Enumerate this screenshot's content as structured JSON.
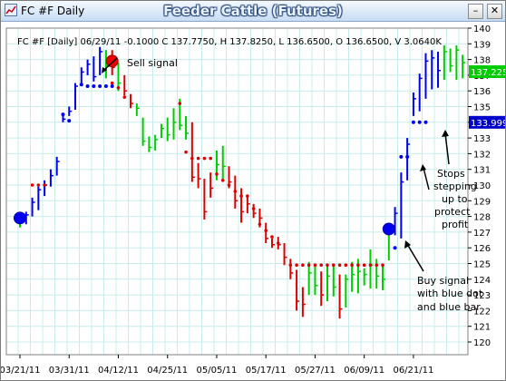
{
  "window": {
    "title": "FC #F Daily",
    "icon": "chart-app-icon",
    "minimize_label": "–",
    "close_label": "✕"
  },
  "chart_data": {
    "type": "ohlc",
    "title": "Feeder Cattle (Futures)",
    "header": "FC #F [Daily] 06/29/11  -0.1000 C 137.7750, H 137.8250, L 136.6500, O 136.6500, V 3.0640K",
    "ylim": [
      120,
      140
    ],
    "y_ticks": [
      120,
      121,
      122,
      123,
      124,
      125,
      126,
      127,
      128,
      129,
      130,
      131,
      132,
      133,
      134,
      135,
      136,
      137,
      138,
      139,
      140
    ],
    "x_tick_labels": [
      "03/21/11",
      "03/31/11",
      "04/12/11",
      "04/25/11",
      "05/05/11",
      "05/17/11",
      "05/27/11",
      "06/09/11",
      "06/21/11"
    ],
    "x_tick_bar_index": [
      0,
      8,
      16,
      24,
      32,
      40,
      48,
      56,
      64
    ],
    "grid": true,
    "colors": {
      "up": "#00cc00",
      "down": "#dd0000",
      "neutral": "#0000ee",
      "stop_dot_red": "#dd0000",
      "stop_dot_blue": "#0000ee",
      "price_tag": "#00cc00",
      "stop_tag": "#0000cc",
      "signal_buy": "#0000ee",
      "signal_sell": "#ee0000"
    },
    "bars": [
      {
        "i": 0,
        "h": 127.9,
        "l": 127.3,
        "c": 127.6,
        "col": "g"
      },
      {
        "i": 1,
        "h": 128.3,
        "l": 127.5,
        "c": 128.1,
        "col": "b"
      },
      {
        "i": 2,
        "h": 129.2,
        "l": 128.0,
        "c": 128.9,
        "col": "b"
      },
      {
        "i": 3,
        "h": 129.9,
        "l": 128.4,
        "c": 129.7,
        "col": "b"
      },
      {
        "i": 4,
        "h": 130.3,
        "l": 129.3,
        "c": 130.0,
        "col": "b"
      },
      {
        "i": 5,
        "h": 131.0,
        "l": 129.9,
        "c": 130.6,
        "col": "b"
      },
      {
        "i": 6,
        "h": 131.8,
        "l": 130.6,
        "c": 131.5,
        "col": "b"
      },
      {
        "i": 7,
        "h": 134.4,
        "l": 134.0,
        "c": 134.2,
        "col": "b"
      },
      {
        "i": 8,
        "h": 135.0,
        "l": 134.4,
        "c": 134.7,
        "col": "b"
      },
      {
        "i": 9,
        "h": 136.5,
        "l": 134.8,
        "c": 136.3,
        "col": "b"
      },
      {
        "i": 10,
        "h": 137.5,
        "l": 136.3,
        "c": 137.2,
        "col": "b"
      },
      {
        "i": 11,
        "h": 138.0,
        "l": 137.0,
        "c": 137.7,
        "col": "b"
      },
      {
        "i": 12,
        "h": 138.2,
        "l": 136.6,
        "c": 136.9,
        "col": "b"
      },
      {
        "i": 13,
        "h": 138.8,
        "l": 137.0,
        "c": 138.5,
        "col": "b"
      },
      {
        "i": 14,
        "h": 138.6,
        "l": 136.8,
        "c": 137.6,
        "col": "g"
      },
      {
        "i": 15,
        "h": 138.6,
        "l": 137.0,
        "c": 137.5,
        "col": "r"
      },
      {
        "i": 16,
        "h": 137.8,
        "l": 136.0,
        "c": 136.5,
        "col": "g"
      },
      {
        "i": 17,
        "h": 137.0,
        "l": 135.7,
        "c": 136.0,
        "col": "r"
      },
      {
        "i": 18,
        "h": 135.8,
        "l": 134.9,
        "c": 135.2,
        "col": "r"
      },
      {
        "i": 19,
        "h": 135.2,
        "l": 134.4,
        "c": 134.9,
        "col": "g"
      },
      {
        "i": 20,
        "h": 134.3,
        "l": 132.5,
        "c": 132.8,
        "col": "g"
      },
      {
        "i": 21,
        "h": 133.1,
        "l": 132.1,
        "c": 132.4,
        "col": "g"
      },
      {
        "i": 22,
        "h": 133.2,
        "l": 132.2,
        "c": 132.9,
        "col": "g"
      },
      {
        "i": 23,
        "h": 133.9,
        "l": 133.0,
        "c": 133.6,
        "col": "g"
      },
      {
        "i": 24,
        "h": 134.3,
        "l": 132.8,
        "c": 133.2,
        "col": "g"
      },
      {
        "i": 25,
        "h": 134.9,
        "l": 132.9,
        "c": 134.0,
        "col": "g"
      },
      {
        "i": 26,
        "h": 135.5,
        "l": 133.5,
        "c": 133.8,
        "col": "g"
      },
      {
        "i": 27,
        "h": 134.4,
        "l": 132.9,
        "c": 133.3,
        "col": "g"
      },
      {
        "i": 28,
        "h": 134.0,
        "l": 130.2,
        "c": 130.5,
        "col": "r"
      },
      {
        "i": 29,
        "h": 131.4,
        "l": 129.8,
        "c": 130.4,
        "col": "r"
      },
      {
        "i": 30,
        "h": 130.4,
        "l": 127.8,
        "c": 128.3,
        "col": "r"
      },
      {
        "i": 31,
        "h": 130.8,
        "l": 129.2,
        "c": 129.8,
        "col": "r"
      },
      {
        "i": 32,
        "h": 132.2,
        "l": 130.3,
        "c": 131.3,
        "col": "g"
      },
      {
        "i": 33,
        "h": 132.5,
        "l": 130.4,
        "c": 131.2,
        "col": "g"
      },
      {
        "i": 34,
        "h": 131.2,
        "l": 129.8,
        "c": 130.2,
        "col": "r"
      },
      {
        "i": 35,
        "h": 130.6,
        "l": 128.5,
        "c": 129.0,
        "col": "r"
      },
      {
        "i": 36,
        "h": 129.8,
        "l": 127.6,
        "c": 128.3,
        "col": "r"
      },
      {
        "i": 37,
        "h": 129.3,
        "l": 128.2,
        "c": 128.8,
        "col": "r"
      },
      {
        "i": 38,
        "h": 128.8,
        "l": 127.9,
        "c": 128.2,
        "col": "r"
      },
      {
        "i": 39,
        "h": 128.5,
        "l": 127.3,
        "c": 127.9,
        "col": "r"
      },
      {
        "i": 40,
        "h": 127.6,
        "l": 126.3,
        "c": 126.6,
        "col": "r"
      },
      {
        "i": 41,
        "h": 126.6,
        "l": 126.0,
        "c": 126.2,
        "col": "r"
      },
      {
        "i": 42,
        "h": 126.7,
        "l": 125.9,
        "c": 126.2,
        "col": "r"
      },
      {
        "i": 43,
        "h": 126.3,
        "l": 124.9,
        "c": 125.4,
        "col": "r"
      },
      {
        "i": 44,
        "h": 125.3,
        "l": 124.0,
        "c": 124.4,
        "col": "r"
      },
      {
        "i": 45,
        "h": 124.6,
        "l": 122.0,
        "c": 122.6,
        "col": "r"
      },
      {
        "i": 46,
        "h": 123.5,
        "l": 121.6,
        "c": 122.4,
        "col": "r"
      },
      {
        "i": 47,
        "h": 125.1,
        "l": 123.0,
        "c": 124.4,
        "col": "g"
      },
      {
        "i": 48,
        "h": 124.9,
        "l": 123.0,
        "c": 123.6,
        "col": "g"
      },
      {
        "i": 49,
        "h": 124.5,
        "l": 122.3,
        "c": 123.0,
        "col": "r"
      },
      {
        "i": 50,
        "h": 124.8,
        "l": 122.6,
        "c": 124.2,
        "col": "g"
      },
      {
        "i": 51,
        "h": 124.9,
        "l": 122.9,
        "c": 123.5,
        "col": "g"
      },
      {
        "i": 52,
        "h": 124.3,
        "l": 121.5,
        "c": 122.1,
        "col": "r"
      },
      {
        "i": 53,
        "h": 124.3,
        "l": 122.2,
        "c": 124.0,
        "col": "g"
      },
      {
        "i": 54,
        "h": 125.1,
        "l": 123.2,
        "c": 124.3,
        "col": "g"
      },
      {
        "i": 55,
        "h": 125.3,
        "l": 123.1,
        "c": 124.5,
        "col": "g"
      },
      {
        "i": 56,
        "h": 124.7,
        "l": 123.6,
        "c": 124.3,
        "col": "g"
      },
      {
        "i": 57,
        "h": 125.9,
        "l": 123.4,
        "c": 124.9,
        "col": "g"
      },
      {
        "i": 58,
        "h": 125.3,
        "l": 123.4,
        "c": 124.2,
        "col": "g"
      },
      {
        "i": 59,
        "h": 125.0,
        "l": 123.3,
        "c": 124.0,
        "col": "g"
      },
      {
        "i": 60,
        "h": 127.6,
        "l": 125.2,
        "c": 127.2,
        "col": "g"
      },
      {
        "i": 61,
        "h": 128.6,
        "l": 126.8,
        "c": 128.2,
        "col": "b"
      },
      {
        "i": 62,
        "h": 130.8,
        "l": 126.6,
        "c": 130.2,
        "col": "b"
      },
      {
        "i": 63,
        "h": 133.0,
        "l": 130.3,
        "c": 132.6,
        "col": "b"
      },
      {
        "i": 64,
        "h": 135.9,
        "l": 134.4,
        "c": 135.5,
        "col": "b"
      },
      {
        "i": 65,
        "h": 137.1,
        "l": 134.7,
        "c": 136.8,
        "col": "b"
      },
      {
        "i": 66,
        "h": 138.4,
        "l": 135.5,
        "c": 137.9,
        "col": "b"
      },
      {
        "i": 67,
        "h": 138.6,
        "l": 136.1,
        "c": 138.1,
        "col": "b"
      },
      {
        "i": 68,
        "h": 138.5,
        "l": 136.2,
        "c": 137.3,
        "col": "b"
      },
      {
        "i": 69,
        "h": 138.9,
        "l": 136.7,
        "c": 138.5,
        "col": "g"
      },
      {
        "i": 70,
        "h": 138.7,
        "l": 137.2,
        "c": 137.6,
        "col": "g"
      },
      {
        "i": 71,
        "h": 138.9,
        "l": 136.7,
        "c": 138.6,
        "col": "g"
      },
      {
        "i": 72,
        "h": 138.3,
        "l": 136.8,
        "c": 137.8,
        "col": "g"
      }
    ],
    "stops_red": [
      {
        "i": 2,
        "y": 130.0
      },
      {
        "i": 3,
        "y": 130.0
      },
      {
        "i": 4,
        "y": 130.0
      },
      {
        "i": 15,
        "y": 136.5
      },
      {
        "i": 16,
        "y": 136.2
      },
      {
        "i": 17,
        "y": 135.6
      },
      {
        "i": 26,
        "y": 135.2
      },
      {
        "i": 27,
        "y": 132.1
      },
      {
        "i": 28,
        "y": 131.7
      },
      {
        "i": 29,
        "y": 131.7
      },
      {
        "i": 30,
        "y": 131.7
      },
      {
        "i": 31,
        "y": 131.7
      },
      {
        "i": 32,
        "y": 130.7
      },
      {
        "i": 33,
        "y": 130.3
      },
      {
        "i": 34,
        "y": 130.0
      },
      {
        "i": 35,
        "y": 129.6
      },
      {
        "i": 36,
        "y": 129.3
      },
      {
        "i": 37,
        "y": 129.3
      },
      {
        "i": 38,
        "y": 128.5
      },
      {
        "i": 39,
        "y": 127.5
      },
      {
        "i": 40,
        "y": 127.1
      },
      {
        "i": 41,
        "y": 126.7
      },
      {
        "i": 42,
        "y": 126.3
      },
      {
        "i": 44,
        "y": 124.9
      },
      {
        "i": 45,
        "y": 124.9
      },
      {
        "i": 46,
        "y": 124.9
      },
      {
        "i": 47,
        "y": 124.9
      },
      {
        "i": 48,
        "y": 124.9
      },
      {
        "i": 49,
        "y": 124.9
      },
      {
        "i": 50,
        "y": 124.9
      },
      {
        "i": 51,
        "y": 124.9
      },
      {
        "i": 52,
        "y": 124.9
      },
      {
        "i": 53,
        "y": 124.9
      },
      {
        "i": 54,
        "y": 124.9
      },
      {
        "i": 55,
        "y": 124.9
      },
      {
        "i": 56,
        "y": 124.9
      },
      {
        "i": 57,
        "y": 124.9
      },
      {
        "i": 58,
        "y": 124.9
      },
      {
        "i": 59,
        "y": 124.9
      }
    ],
    "stops_blue": [
      {
        "i": 7,
        "y": 134.5
      },
      {
        "i": 8,
        "y": 134.1
      },
      {
        "i": 10,
        "y": 136.4
      },
      {
        "i": 11,
        "y": 136.3
      },
      {
        "i": 12,
        "y": 136.3
      },
      {
        "i": 13,
        "y": 136.3
      },
      {
        "i": 14,
        "y": 136.3
      },
      {
        "i": 15,
        "y": 136.3
      },
      {
        "i": 61,
        "y": 126.0
      },
      {
        "i": 62,
        "y": 131.8
      },
      {
        "i": 63,
        "y": 131.8
      },
      {
        "i": 64,
        "y": 134.0
      },
      {
        "i": 65,
        "y": 134.0
      },
      {
        "i": 66,
        "y": 134.0
      }
    ],
    "signals": [
      {
        "type": "buy",
        "i": 0,
        "y": 127.9
      },
      {
        "type": "sell",
        "i": 15,
        "y": 137.9
      },
      {
        "type": "buy",
        "i": 60,
        "y": 127.2
      }
    ],
    "last_price_tag": "137.225",
    "last_price_tag_value": 137.225,
    "stop_tag": "133.999",
    "stop_tag_value": 133.999,
    "annotations": {
      "sell": "Sell signal",
      "stops": [
        "Stops",
        "stepping",
        "up to",
        "protect",
        "profit"
      ],
      "buy": [
        "Buy signal",
        "with blue dot",
        "and blue bar"
      ]
    }
  }
}
